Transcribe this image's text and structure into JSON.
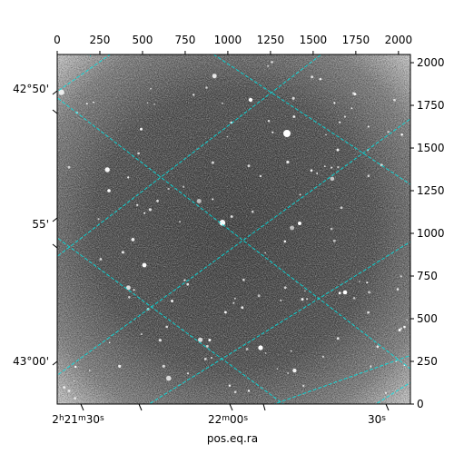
{
  "chart_data": {
    "type": "image",
    "xlabel": "pos.eq.ra",
    "ylabel": "",
    "pixel_axes": {
      "x": {
        "range": [
          0,
          2070
        ],
        "ticks": [
          "0",
          "250",
          "500",
          "750",
          "1000",
          "1250",
          "1500",
          "1750",
          "2000"
        ],
        "tick_values": [
          0,
          250,
          500,
          750,
          1000,
          1250,
          1500,
          1750,
          2000
        ]
      },
      "y": {
        "range": [
          0,
          2048
        ],
        "ticks": [
          "0",
          "250",
          "500",
          "750",
          "1000",
          "1250",
          "1500",
          "1750",
          "2000"
        ],
        "tick_values": [
          0,
          250,
          500,
          750,
          1000,
          1250,
          1500,
          1750,
          2000
        ]
      }
    },
    "world_axes": {
      "ra_ticks": [
        {
          "label": "2h21m30s",
          "label_parts": [
            [
              "2",
              ""
            ],
            [
              "h",
              "sup"
            ],
            [
              "21",
              ""
            ],
            [
              "m",
              "sup"
            ],
            [
              "30",
              ""
            ],
            [
              "s",
              "sup"
            ]
          ]
        },
        {
          "label": "22m00s",
          "label_parts": [
            [
              "22",
              ""
            ],
            [
              "m",
              "sup"
            ],
            [
              "00",
              ""
            ],
            [
              "s",
              "sup"
            ]
          ]
        },
        {
          "label": "30s",
          "label_parts": [
            [
              "30",
              ""
            ],
            [
              "s",
              "sup"
            ]
          ]
        }
      ],
      "dec_ticks": [
        "42°50'",
        "55'",
        "43°00'"
      ]
    },
    "grid": true,
    "grid_color": "#00e5e5",
    "colormap": "gray"
  }
}
